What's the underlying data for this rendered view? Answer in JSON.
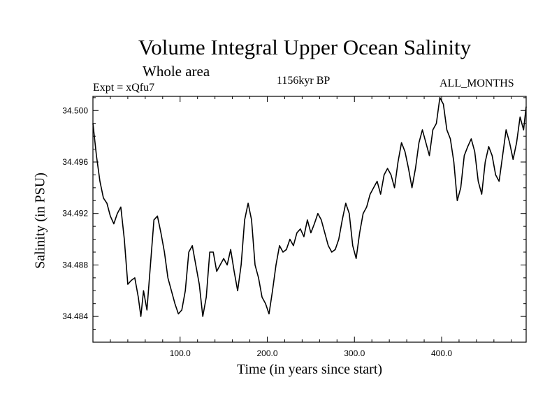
{
  "chart_data": {
    "type": "line",
    "title": "Volume Integral Upper Ocean Salinity",
    "subtitle": "Whole area",
    "left_label": "Expt = xQfu7",
    "center_label": "1156kyr BP",
    "right_label": "ALL_MONTHS",
    "xlabel": "Time (in years since start)",
    "ylabel": "Salinity (in PSU)",
    "xlim": [
      0,
      497
    ],
    "ylim": [
      34.482,
      34.5011
    ],
    "xticks": [
      100,
      200,
      300,
      400
    ],
    "xtick_labels": [
      "100.0",
      "200.0",
      "300.0",
      "400.0"
    ],
    "yticks": [
      34.484,
      34.488,
      34.492,
      34.496,
      34.5
    ],
    "ytick_labels": [
      "34.484",
      "34.488",
      "34.492",
      "34.496",
      "34.500"
    ],
    "grid": false,
    "series": [
      {
        "name": "salinity",
        "color": "#000000",
        "x": [
          0,
          4,
          8,
          12,
          16,
          20,
          24,
          28,
          32,
          36,
          40,
          44,
          48,
          52,
          55,
          58,
          62,
          66,
          70,
          74,
          78,
          82,
          86,
          90,
          94,
          98,
          102,
          106,
          110,
          114,
          118,
          122,
          126,
          130,
          134,
          138,
          142,
          146,
          150,
          154,
          158,
          162,
          166,
          170,
          174,
          178,
          182,
          186,
          190,
          194,
          198,
          202,
          206,
          210,
          214,
          218,
          222,
          226,
          230,
          234,
          238,
          242,
          246,
          250,
          254,
          258,
          262,
          266,
          270,
          274,
          278,
          282,
          286,
          290,
          294,
          298,
          302,
          306,
          310,
          314,
          318,
          322,
          326,
          330,
          334,
          338,
          342,
          346,
          350,
          354,
          358,
          362,
          366,
          370,
          374,
          378,
          382,
          386,
          390,
          394,
          398,
          402,
          406,
          410,
          414,
          418,
          422,
          426,
          430,
          434,
          438,
          442,
          446,
          450,
          454,
          458,
          462,
          466,
          470,
          474,
          478,
          482,
          486,
          490,
          494,
          497
        ],
        "values": [
          34.499,
          34.4965,
          34.4945,
          34.4932,
          34.4928,
          34.4918,
          34.4912,
          34.492,
          34.4925,
          34.49,
          34.4865,
          34.4868,
          34.487,
          34.4855,
          34.484,
          34.486,
          34.4845,
          34.488,
          34.4915,
          34.4918,
          34.4905,
          34.489,
          34.487,
          34.486,
          34.485,
          34.4842,
          34.4845,
          34.486,
          34.489,
          34.4895,
          34.488,
          34.4865,
          34.484,
          34.4855,
          34.489,
          34.489,
          34.4875,
          34.488,
          34.4885,
          34.488,
          34.4892,
          34.4875,
          34.486,
          34.488,
          34.4915,
          34.4928,
          34.4915,
          34.488,
          34.487,
          34.4855,
          34.485,
          34.4842,
          34.486,
          34.488,
          34.4895,
          34.489,
          34.4892,
          34.49,
          34.4895,
          34.4905,
          34.4908,
          34.4902,
          34.4915,
          34.4905,
          34.4912,
          34.492,
          34.4915,
          34.4905,
          34.4895,
          34.489,
          34.4892,
          34.49,
          34.4915,
          34.4928,
          34.492,
          34.4895,
          34.4885,
          34.4905,
          34.492,
          34.4925,
          34.4935,
          34.494,
          34.4945,
          34.4935,
          34.495,
          34.4955,
          34.495,
          34.494,
          34.496,
          34.4975,
          34.4968,
          34.4955,
          34.494,
          34.4955,
          34.4975,
          34.4985,
          34.4975,
          34.4965,
          34.4985,
          34.499,
          34.501,
          34.5005,
          34.4985,
          34.4978,
          34.496,
          34.493,
          34.494,
          34.4965,
          34.4972,
          34.4978,
          34.4968,
          34.4945,
          34.4935,
          34.496,
          34.4972,
          34.4965,
          34.495,
          34.4945,
          34.4965,
          34.4985,
          34.4975,
          34.4962,
          34.4975,
          34.4995,
          34.4985,
          34.5003
        ]
      }
    ]
  }
}
